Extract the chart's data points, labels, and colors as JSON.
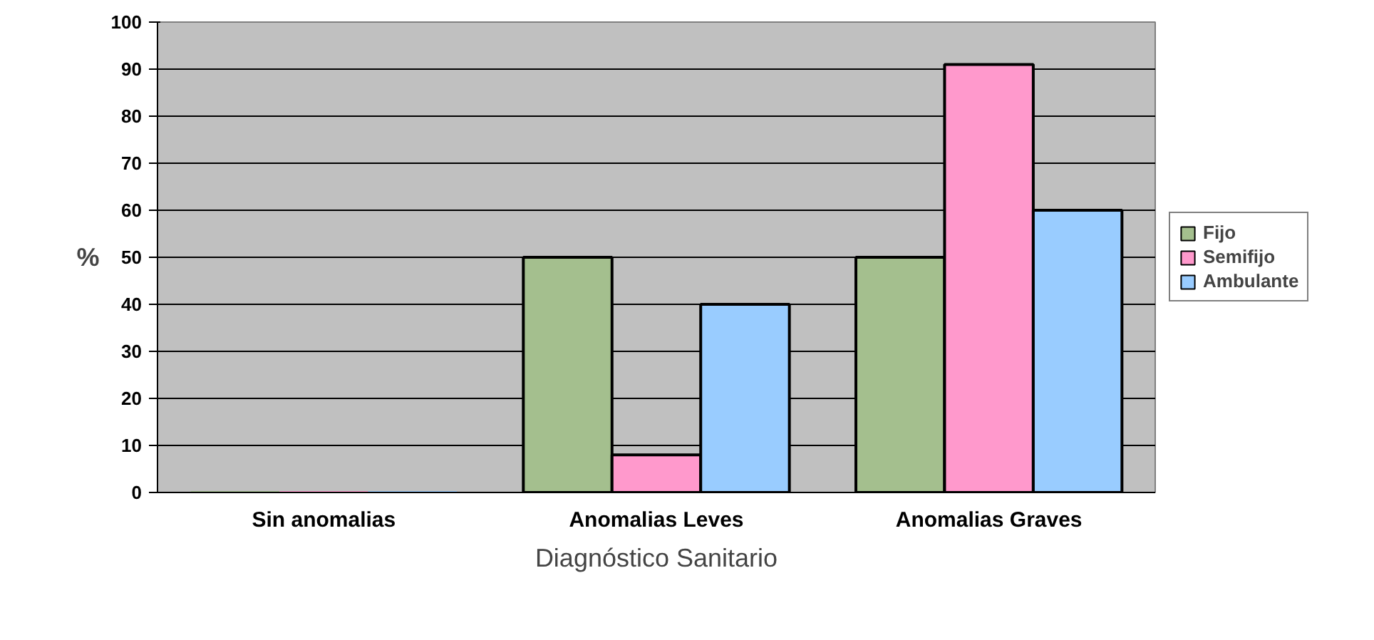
{
  "chart_data": {
    "type": "bar",
    "xlabel": "Diagnóstico Sanitario",
    "ylabel": "%",
    "categories": [
      "Sin anomalias",
      "Anomalias Leves",
      "Anomalias Graves"
    ],
    "series": [
      {
        "name": "Fijo",
        "color": "#a4bf8e",
        "values": [
          0,
          50,
          50
        ]
      },
      {
        "name": "Semifijo",
        "color": "#ff99cc",
        "values": [
          0,
          8,
          91
        ]
      },
      {
        "name": "Ambulante",
        "color": "#99ccff",
        "values": [
          0,
          40,
          60
        ]
      }
    ],
    "ylim": [
      0,
      100
    ],
    "yticks": [
      0,
      10,
      20,
      30,
      40,
      50,
      60,
      70,
      80,
      90,
      100
    ],
    "grid": "y",
    "legend": "right"
  }
}
